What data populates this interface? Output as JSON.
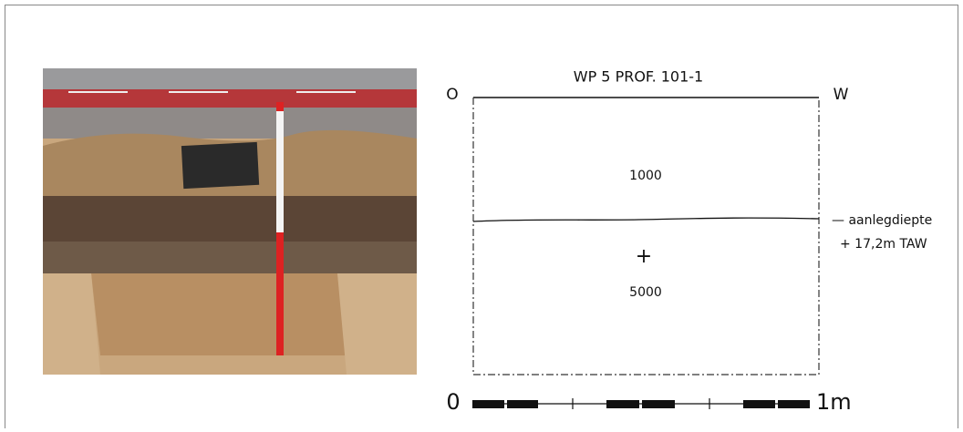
{
  "drawing": {
    "title": "WP 5 PROF. 101-1",
    "left_orientation": "O",
    "right_orientation": "W",
    "upper_layer": "1000",
    "lower_layer": "5000",
    "centre_mark": "+",
    "level_label": "— aanlegdiepte",
    "level_height": "+ 17,2m TAW",
    "scale_start": "0",
    "scale_end": "1m"
  }
}
